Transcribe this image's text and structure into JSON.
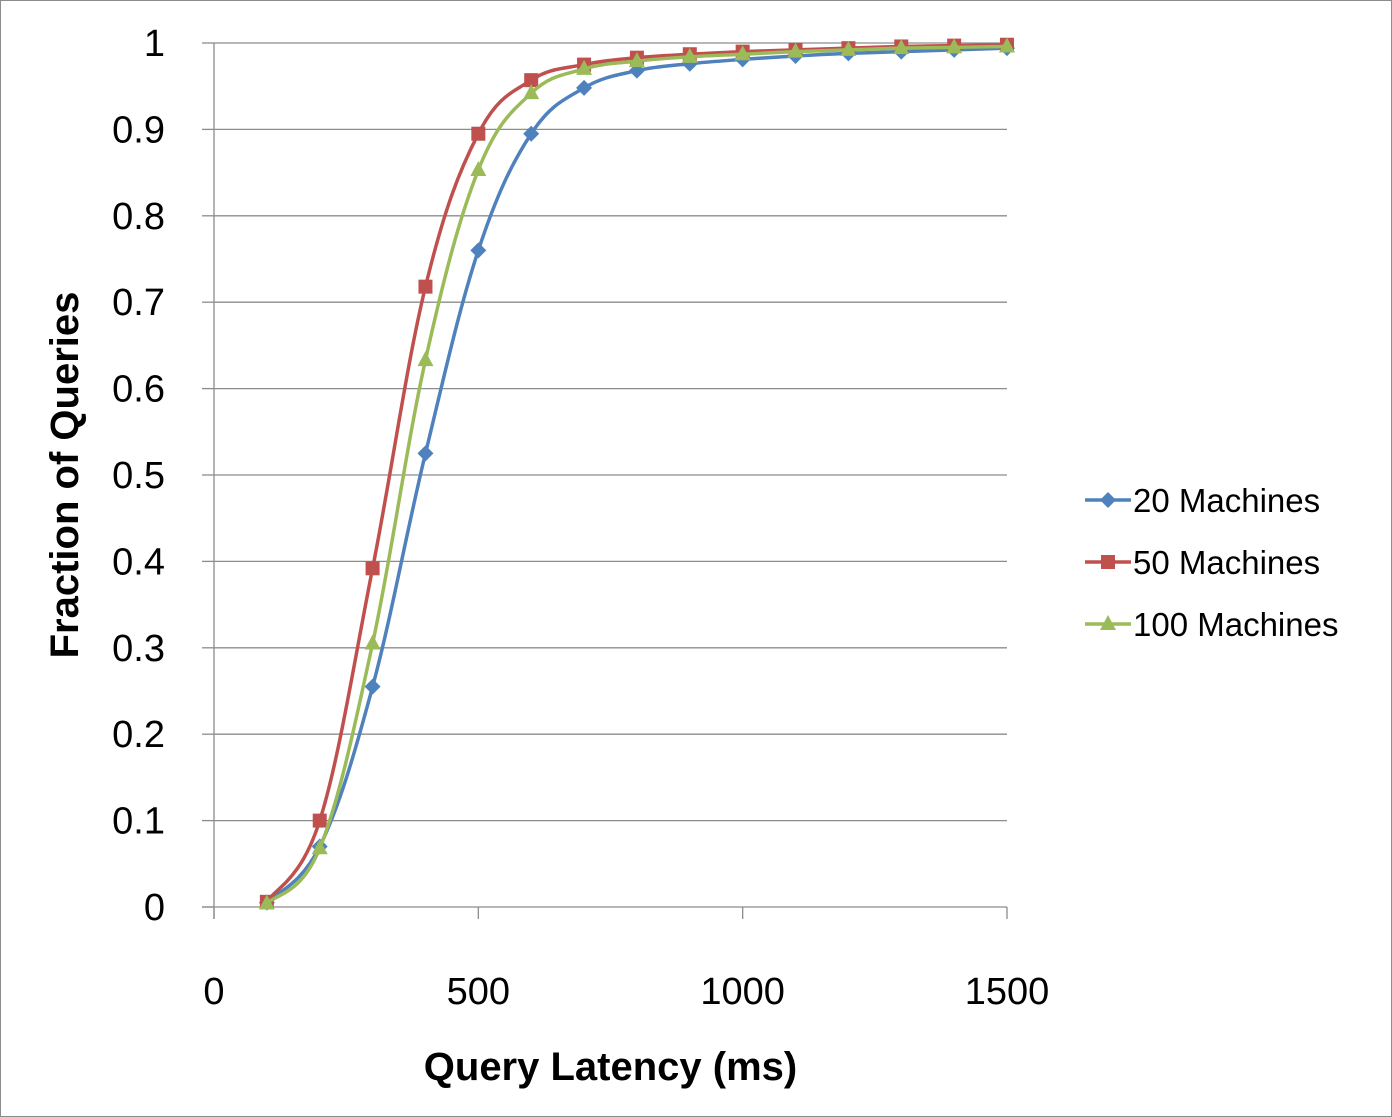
{
  "chart_data": {
    "type": "line",
    "xlabel": "Query Latency (ms)",
    "ylabel": "Fraction of Queries",
    "xlim": [
      0,
      1500
    ],
    "ylim": [
      0,
      1
    ],
    "x_ticks": [
      "0",
      "500",
      "1000",
      "1500"
    ],
    "y_ticks": [
      "0",
      "0.1",
      "0.2",
      "0.3",
      "0.4",
      "0.5",
      "0.6",
      "0.7",
      "0.8",
      "0.9",
      "1"
    ],
    "grid": "horizontal",
    "legend_position": "right",
    "x": [
      100,
      200,
      300,
      400,
      500,
      600,
      700,
      800,
      900,
      1000,
      1100,
      1200,
      1300,
      1400,
      1500
    ],
    "series": [
      {
        "name": "20 Machines",
        "color": "#4f81bd",
        "marker": "diamond",
        "values": [
          0.005,
          0.07,
          0.255,
          0.525,
          0.76,
          0.895,
          0.948,
          0.968,
          0.976,
          0.981,
          0.985,
          0.988,
          0.99,
          0.992,
          0.994
        ]
      },
      {
        "name": "50 Machines",
        "color": "#c0504d",
        "marker": "square",
        "values": [
          0.006,
          0.1,
          0.392,
          0.718,
          0.895,
          0.957,
          0.975,
          0.983,
          0.987,
          0.99,
          0.992,
          0.994,
          0.996,
          0.997,
          0.998
        ]
      },
      {
        "name": "100 Machines",
        "color": "#9bbb59",
        "marker": "triangle",
        "values": [
          0.004,
          0.068,
          0.305,
          0.633,
          0.853,
          0.942,
          0.97,
          0.979,
          0.984,
          0.987,
          0.99,
          0.992,
          0.994,
          0.995,
          0.996
        ]
      }
    ]
  }
}
